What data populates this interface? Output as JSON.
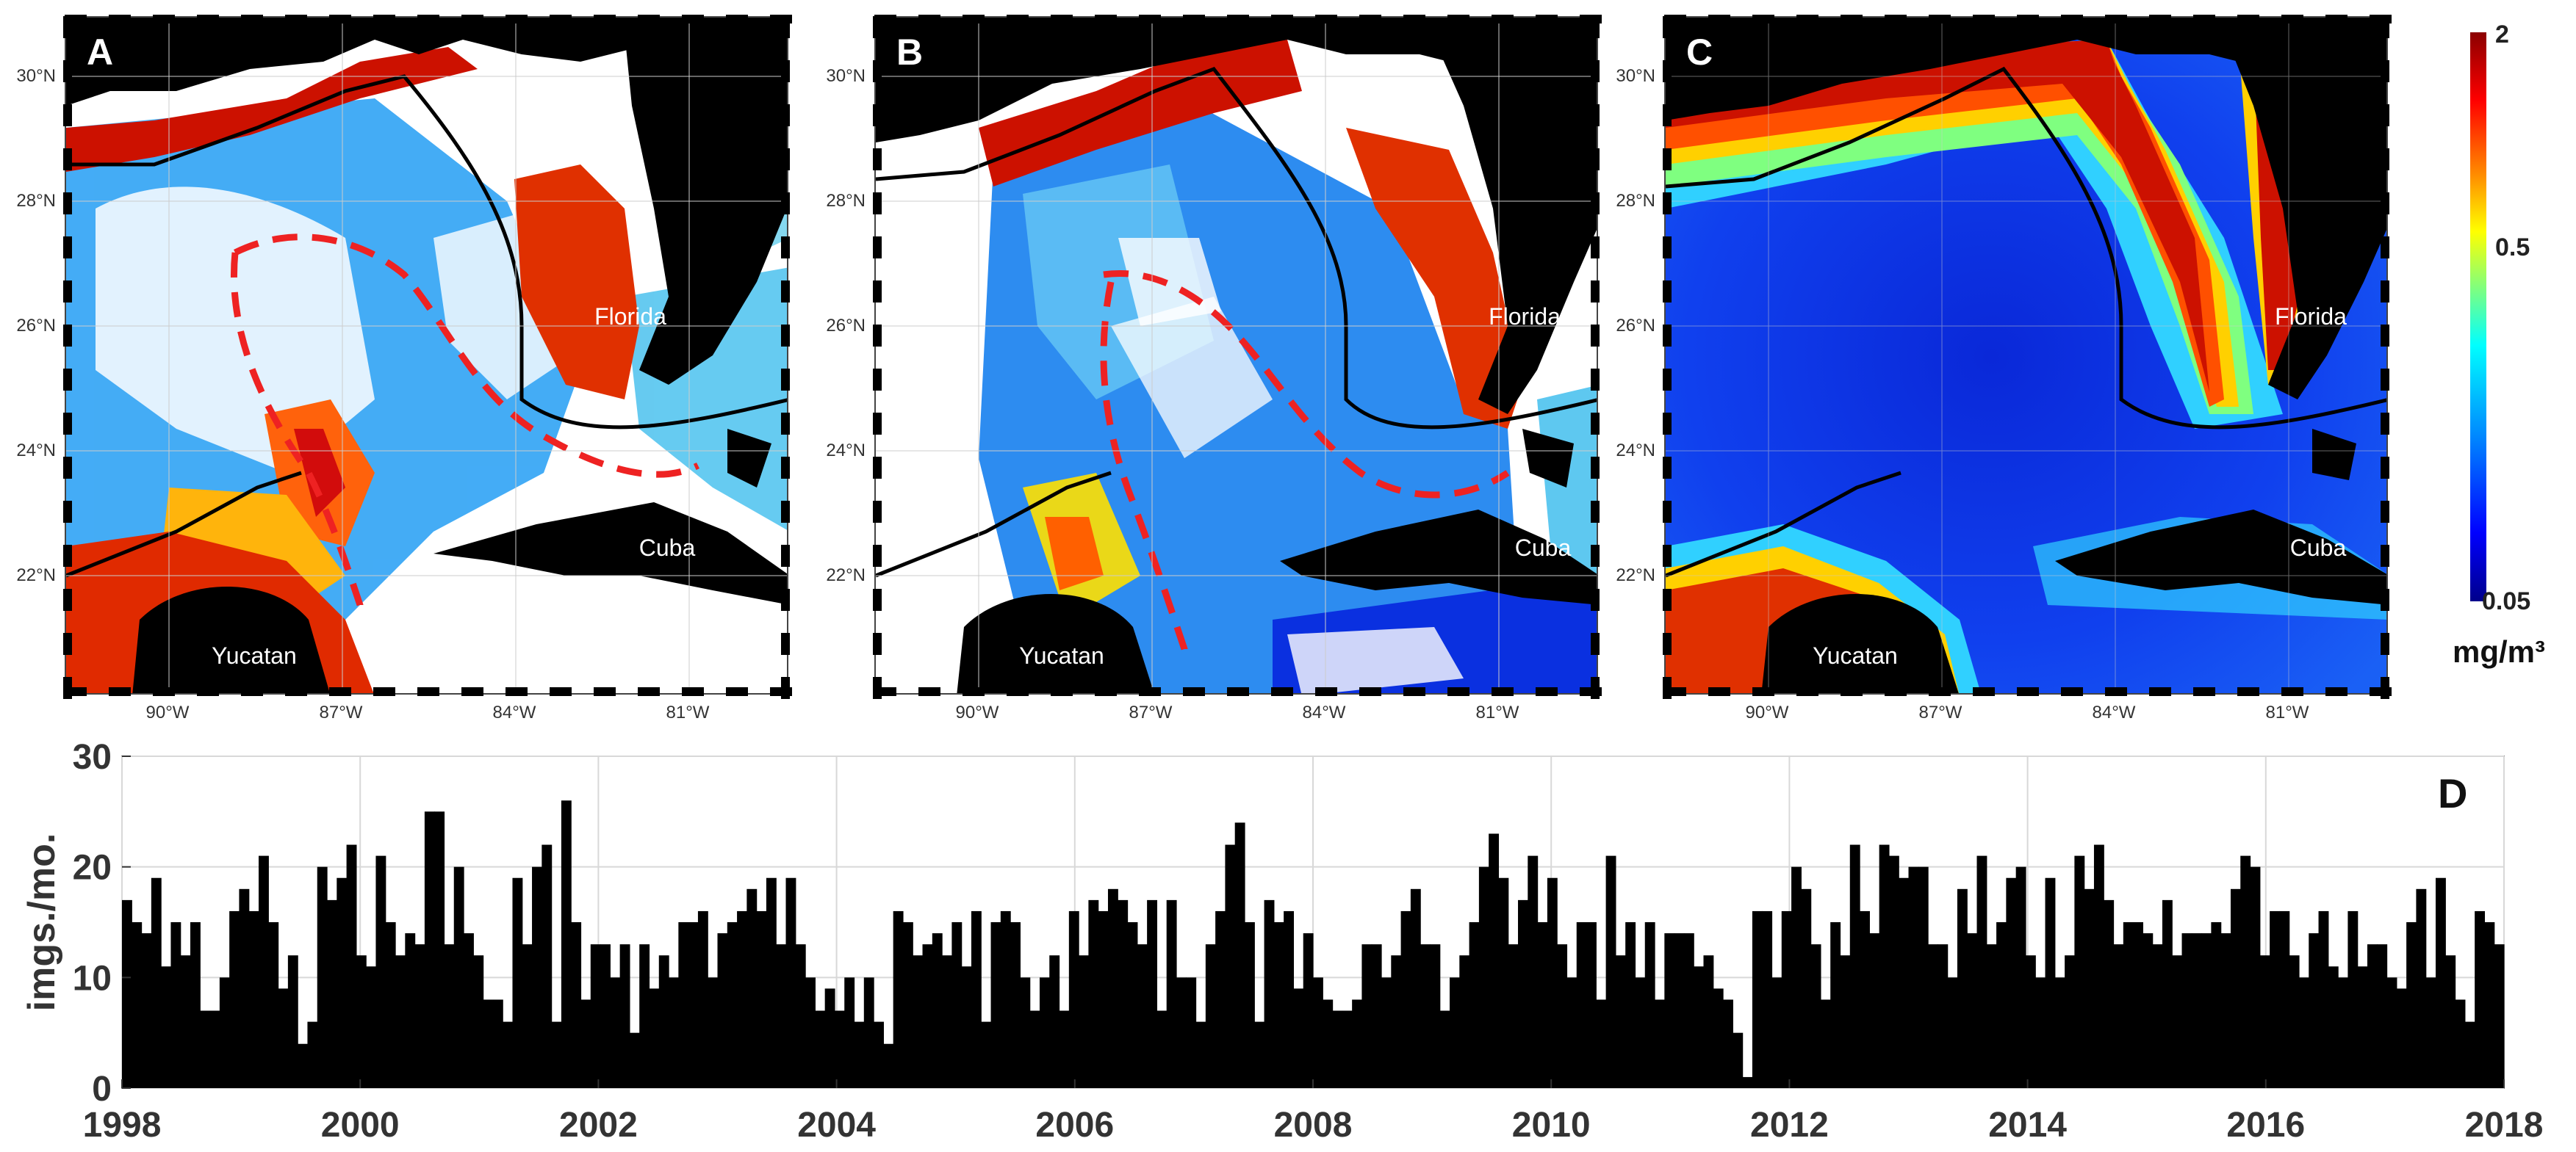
{
  "maps": [
    {
      "panel_letter": "A",
      "y_ticks": [
        "30°N",
        "28°N",
        "26°N",
        "24°N",
        "22°N"
      ],
      "x_ticks": [
        "90°W",
        "87°W",
        "84°W",
        "81°W"
      ],
      "place_labels": [
        "Florida",
        "Cuba",
        "Yucatan"
      ],
      "dashed_line": true
    },
    {
      "panel_letter": "B",
      "y_ticks": [
        "30°N",
        "28°N",
        "26°N",
        "24°N",
        "22°N"
      ],
      "x_ticks": [
        "90°W",
        "87°W",
        "84°W",
        "81°W"
      ],
      "place_labels": [
        "Florida",
        "Cuba",
        "Yucatan"
      ],
      "dashed_line": true
    },
    {
      "panel_letter": "C",
      "y_ticks": [
        "30°N",
        "28°N",
        "26°N",
        "24°N",
        "22°N"
      ],
      "x_ticks": [
        "90°W",
        "87°W",
        "84°W",
        "81°W"
      ],
      "place_labels": [
        "Florida",
        "Cuba",
        "Yucatan"
      ],
      "dashed_line": false
    }
  ],
  "colorbar": {
    "tick_labels": [
      "2",
      "0.5",
      "0.05"
    ],
    "unit_label": "mg/m³",
    "colors": [
      "#8b0000",
      "#ff0000",
      "#ff8c00",
      "#ffff00",
      "#7fff7f",
      "#00ffff",
      "#0080ff",
      "#0000ff",
      "#00008b"
    ]
  },
  "colors": {
    "land": "#000000",
    "dashed_line": "#ee2222",
    "bar_fill": "#000000",
    "ocean_offshore": "#1a3cf0"
  },
  "chart_data": {
    "type": "bar",
    "panel_letter": "D",
    "ylabel": "imgs./mo.",
    "xlabel": "",
    "ylim": [
      0,
      30
    ],
    "y_ticks": [
      0,
      10,
      20,
      30
    ],
    "x_ticks": [
      "1998",
      "2000",
      "2002",
      "2004",
      "2006",
      "2008",
      "2010",
      "2012",
      "2014",
      "2016",
      "2018"
    ],
    "x_start_year": 1998,
    "x_end_year": 2018,
    "grid": true,
    "values": [
      17,
      15,
      14,
      19,
      11,
      15,
      12,
      15,
      7,
      7,
      10,
      16,
      18,
      16,
      21,
      15,
      9,
      12,
      4,
      6,
      20,
      17,
      19,
      22,
      12,
      11,
      21,
      15,
      12,
      14,
      13,
      25,
      25,
      13,
      20,
      14,
      12,
      8,
      8,
      6,
      19,
      13,
      20,
      22,
      6,
      26,
      15,
      8,
      13,
      13,
      10,
      13,
      5,
      13,
      9,
      12,
      10,
      15,
      15,
      16,
      10,
      14,
      15,
      16,
      18,
      16,
      19,
      13,
      19,
      13,
      10,
      7,
      9,
      7,
      10,
      6,
      10,
      6,
      4,
      16,
      15,
      12,
      13,
      14,
      12,
      15,
      11,
      16,
      6,
      15,
      16,
      15,
      10,
      7,
      10,
      12,
      7,
      16,
      12,
      17,
      16,
      18,
      17,
      15,
      13,
      17,
      7,
      17,
      10,
      10,
      6,
      13,
      16,
      22,
      24,
      15,
      6,
      17,
      15,
      16,
      9,
      14,
      10,
      8,
      7,
      7,
      8,
      13,
      13,
      10,
      12,
      16,
      18,
      13,
      13,
      7,
      10,
      12,
      15,
      20,
      23,
      19,
      13,
      17,
      21,
      15,
      19,
      13,
      10,
      15,
      15,
      8,
      21,
      12,
      15,
      10,
      15,
      8,
      14,
      14,
      14,
      11,
      12,
      9,
      8,
      5,
      1,
      16,
      16,
      10,
      16,
      20,
      18,
      13,
      8,
      15,
      12,
      22,
      16,
      14,
      22,
      21,
      19,
      20,
      20,
      13,
      13,
      10,
      18,
      14,
      21,
      13,
      15,
      19,
      20,
      12,
      10,
      19,
      10,
      12,
      21,
      18,
      22,
      17,
      13,
      15,
      15,
      14,
      13,
      17,
      12,
      14,
      14,
      14,
      15,
      14,
      18,
      21,
      20,
      12,
      16,
      16,
      12,
      10,
      14,
      16,
      11,
      10,
      16,
      11,
      13,
      13,
      10,
      9,
      15,
      18,
      10,
      19,
      12,
      8,
      6,
      16,
      15,
      13
    ]
  }
}
